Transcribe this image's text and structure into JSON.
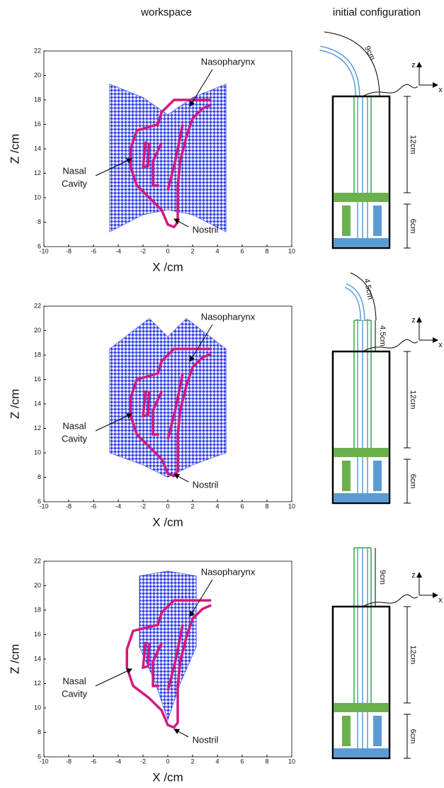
{
  "headers": {
    "left": "workspace",
    "right": "initial configuration"
  },
  "panels": [
    {
      "xticks": [
        -10,
        -8,
        -6,
        -4,
        -2,
        0,
        2,
        4,
        6,
        8,
        10
      ],
      "yticks": [
        6,
        8,
        10,
        12,
        14,
        16,
        18,
        20,
        22
      ],
      "x_label": "X /cm",
      "y_label": "Z /cm",
      "annotations": {
        "nasopharynx": "Nasopharynx",
        "nasal_cavity": [
          "Nasal",
          "Cavity"
        ],
        "nostril": "Nostril"
      },
      "config": {
        "dimensions": [
          "9cm",
          "12cm",
          "6cm"
        ],
        "axes": [
          "z",
          "x"
        ]
      }
    },
    {
      "xticks": [
        -10,
        -8,
        -6,
        -4,
        -2,
        0,
        2,
        4,
        6,
        8,
        10
      ],
      "yticks": [
        6,
        8,
        10,
        12,
        14,
        16,
        18,
        20,
        22
      ],
      "x_label": "X /cm",
      "y_label": "Z /cm",
      "annotations": {
        "nasopharynx": "Nasopharynx",
        "nasal_cavity": [
          "Nasal",
          "Cavity"
        ],
        "nostril": "Nostril"
      },
      "config": {
        "dimensions": [
          "4.5cm",
          "4.5cm",
          "12cm",
          "6cm"
        ],
        "axes": [
          "z",
          "x"
        ]
      }
    },
    {
      "xticks": [
        -10,
        -8,
        -6,
        -4,
        -2,
        0,
        2,
        4,
        6,
        8,
        10
      ],
      "yticks": [
        6,
        8,
        10,
        12,
        14,
        16,
        18,
        20,
        22
      ],
      "x_label": "X /cm",
      "y_label": "Z /cm",
      "annotations": {
        "nasopharynx": "Nasopharynx",
        "nasal_cavity": [
          "Nasal",
          "Cavity"
        ],
        "nostril": "Nostril"
      },
      "config": {
        "dimensions": [
          "9cm",
          "12cm",
          "6cm"
        ],
        "axes": [
          "z",
          "x"
        ]
      }
    }
  ]
}
